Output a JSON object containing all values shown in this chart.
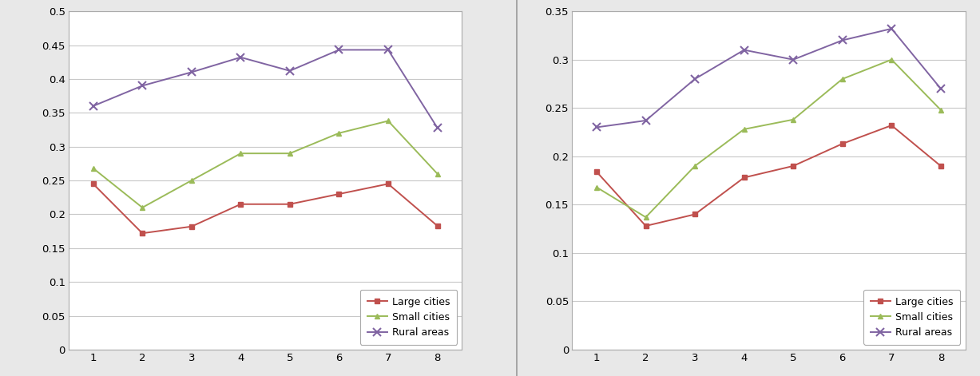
{
  "x": [
    1,
    2,
    3,
    4,
    5,
    6,
    7,
    8
  ],
  "left": {
    "large_cities": [
      0.245,
      0.172,
      0.182,
      0.215,
      0.215,
      0.23,
      0.245,
      0.183
    ],
    "small_cities": [
      0.268,
      0.21,
      0.25,
      0.29,
      0.29,
      0.32,
      0.338,
      0.26
    ],
    "rural_areas": [
      0.36,
      0.39,
      0.41,
      0.432,
      0.412,
      0.443,
      0.443,
      0.328
    ],
    "ylim": [
      0,
      0.5
    ],
    "yticks": [
      0,
      0.05,
      0.1,
      0.15,
      0.2,
      0.25,
      0.3,
      0.35,
      0.4,
      0.45,
      0.5
    ],
    "yticklabels": [
      "0",
      "0.05",
      "0.1",
      "0.15",
      "0.2",
      "0.25",
      "0.3",
      "0.35",
      "0.4",
      "0.45",
      "0.5"
    ]
  },
  "right": {
    "large_cities": [
      0.184,
      0.128,
      0.14,
      0.178,
      0.19,
      0.213,
      0.232,
      0.19
    ],
    "small_cities": [
      0.168,
      0.137,
      0.19,
      0.228,
      0.238,
      0.28,
      0.3,
      0.248
    ],
    "rural_areas": [
      0.23,
      0.237,
      0.28,
      0.31,
      0.3,
      0.32,
      0.332,
      0.27
    ],
    "ylim": [
      0,
      0.35
    ],
    "yticks": [
      0,
      0.05,
      0.1,
      0.15,
      0.2,
      0.25,
      0.3,
      0.35
    ],
    "yticklabels": [
      "0",
      "0.05",
      "0.1",
      "0.15",
      "0.2",
      "0.25",
      "0.3",
      "0.35"
    ]
  },
  "large_cities_color": "#C0504D",
  "small_cities_color": "#9BBB59",
  "rural_areas_color": "#8064A2",
  "large_cities_label": "Large cities",
  "small_cities_label": "Small cities",
  "rural_areas_label": "Rural areas",
  "legend_fontsize": 9,
  "tick_fontsize": 9.5,
  "bg_color": "#FFFFFF",
  "outer_bg": "#E8E8E8",
  "line_width": 1.4,
  "marker_size": 5,
  "grid_color": "#C8C8C8",
  "spine_color": "#AAAAAA"
}
